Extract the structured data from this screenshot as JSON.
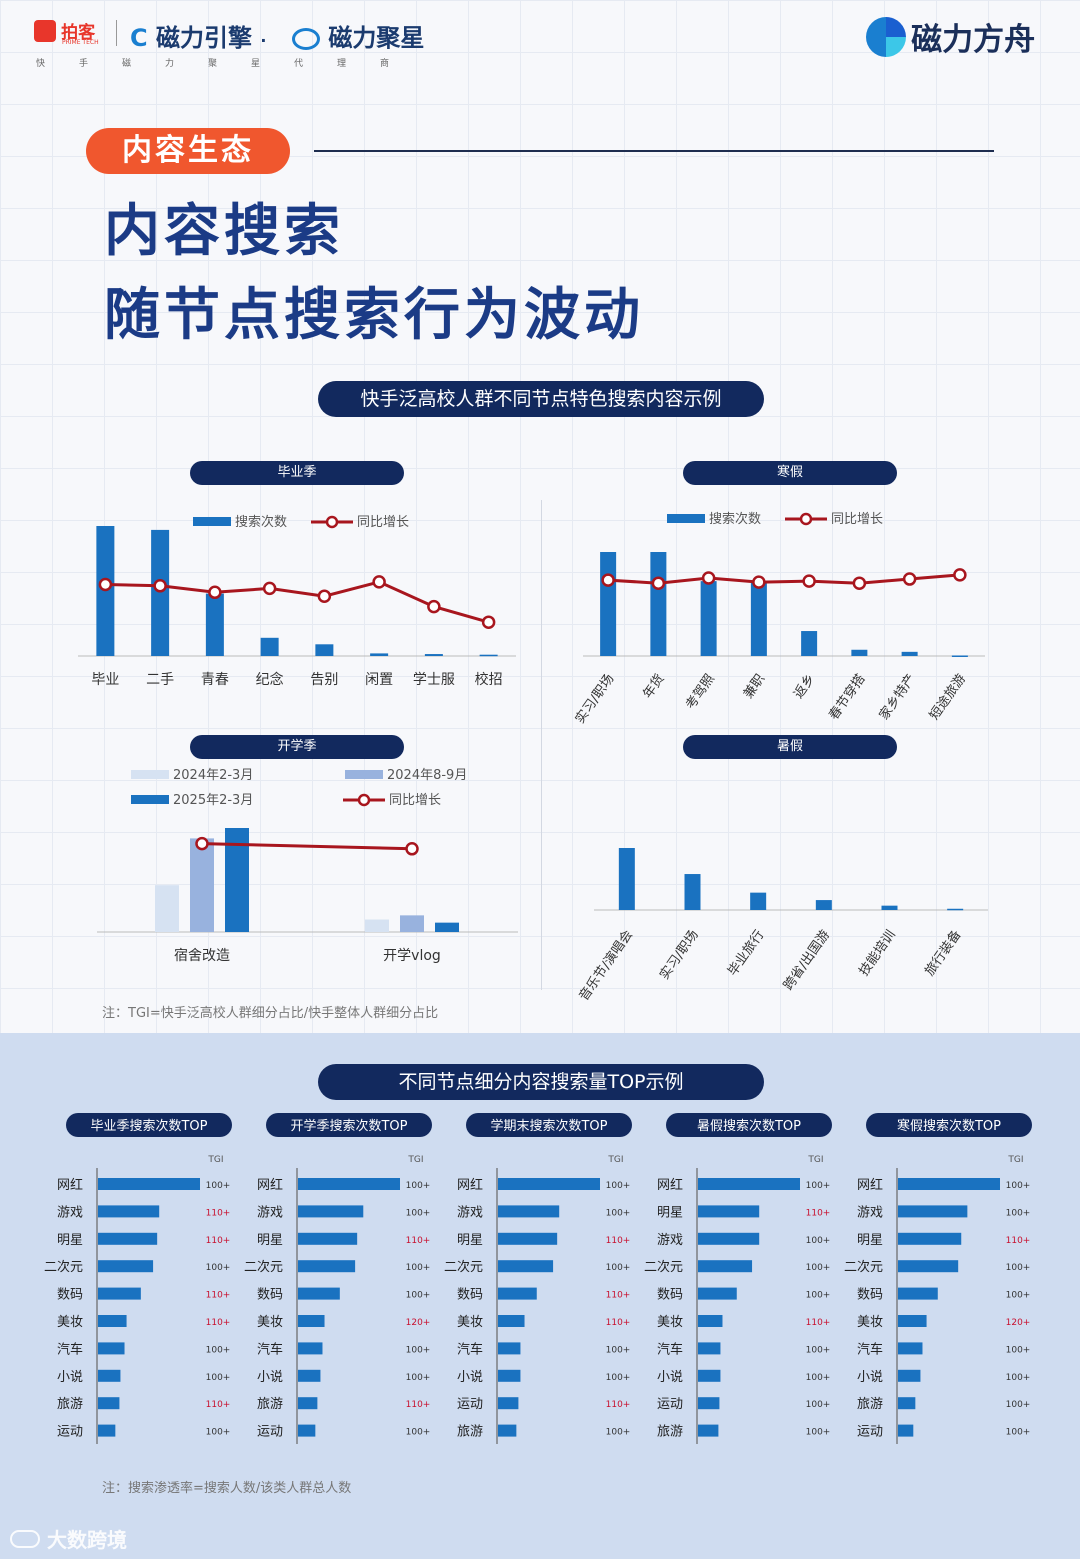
{
  "header": {
    "logo1": "拍客",
    "logo1_sub": "PRIME TECH",
    "logo2": "磁力引擎",
    "dot": "·",
    "logo3": "磁力聚星",
    "agency": "快手磁力聚星代理商",
    "brand_right": "磁力方舟"
  },
  "section_tag": "内容生态",
  "title_line1": "内容搜索",
  "title_line2": "随节点搜索行为波动",
  "panel1_title": "快手泛高校人群不同节点特色搜索内容示例",
  "note1": "注：TGI=快手泛高校人群细分占比/快手整体人群细分占比",
  "panel2_title": "不同节点细分内容搜索量TOP示例",
  "note2": "注：搜索渗透率=搜索人数/该类人群总人数",
  "watermark": "大数跨境",
  "colors": {
    "bar": "#1a72c0",
    "line": "#a8161e",
    "navy": "#12295e",
    "orange": "#f0572e",
    "light1": "#d6e2f2",
    "light2": "#98b2de"
  },
  "chart_data": [
    {
      "type": "bar+line",
      "title": "毕业季",
      "legend": [
        "搜索次数",
        "同比增长"
      ],
      "categories": [
        "毕业",
        "二手",
        "青春",
        "纪念",
        "告别",
        "闲置",
        "学士服",
        "校招"
      ],
      "series": [
        {
          "name": "搜索次数",
          "values": [
            100,
            97,
            48,
            14,
            9,
            2,
            1.5,
            1
          ]
        },
        {
          "name": "同比增长",
          "values": [
            55,
            54,
            49,
            52,
            46,
            57,
            38,
            26
          ]
        }
      ]
    },
    {
      "type": "bar+line",
      "title": "寒假",
      "legend": [
        "搜索次数",
        "同比增长"
      ],
      "categories": [
        "实习/职场",
        "年货",
        "考驾照",
        "兼职",
        "返乡",
        "春节穿搭",
        "家乡特产",
        "短途旅游"
      ],
      "series": [
        {
          "name": "搜索次数",
          "values": [
            100,
            100,
            72,
            72,
            24,
            6,
            4,
            0.5
          ]
        },
        {
          "name": "同比增长",
          "values": [
            73,
            70,
            75,
            71,
            72,
            70,
            74,
            78
          ]
        }
      ]
    },
    {
      "type": "bar+line",
      "title": "开学季",
      "legend": [
        "2024年2-3月",
        "2024年8-9月",
        "2025年2-3月",
        "同比增长"
      ],
      "categories": [
        "宿舍改造",
        "开学vlog"
      ],
      "series": [
        {
          "name": "2024年2-3月",
          "values": [
            45,
            12
          ]
        },
        {
          "name": "2024年8-9月",
          "values": [
            90,
            16
          ]
        },
        {
          "name": "2025年2-3月",
          "values": [
            100,
            9
          ]
        },
        {
          "name": "同比增长",
          "values": [
            85,
            80
          ]
        }
      ]
    },
    {
      "type": "bar",
      "title": "暑假",
      "categories": [
        "音乐节/演唱会",
        "实习/职场",
        "毕业旅行",
        "跨省/出国游",
        "技能培训",
        "旅行装备"
      ],
      "series": [
        {
          "name": "搜索次数",
          "values": [
            100,
            58,
            28,
            16,
            7,
            2
          ]
        }
      ]
    },
    {
      "type": "bar",
      "title": "毕业季搜索次数TOP",
      "tgi_label": "TGI",
      "categories": [
        "网红",
        "游戏",
        "明星",
        "二次元",
        "数码",
        "美妆",
        "汽车",
        "小说",
        "旅游",
        "运动"
      ],
      "values": [
        100,
        60,
        58,
        54,
        42,
        28,
        26,
        22,
        21,
        17
      ],
      "tgi": [
        "100+",
        "110+",
        "110+",
        "100+",
        "110+",
        "110+",
        "100+",
        "100+",
        "110+",
        "100+"
      ]
    },
    {
      "type": "bar",
      "title": "开学季搜索次数TOP",
      "tgi_label": "TGI",
      "categories": [
        "网红",
        "游戏",
        "明星",
        "二次元",
        "数码",
        "美妆",
        "汽车",
        "小说",
        "旅游",
        "运动"
      ],
      "values": [
        100,
        64,
        58,
        56,
        41,
        26,
        24,
        22,
        19,
        17
      ],
      "tgi": [
        "100+",
        "100+",
        "110+",
        "100+",
        "100+",
        "120+",
        "100+",
        "100+",
        "110+",
        "100+"
      ]
    },
    {
      "type": "bar",
      "title": "学期末搜索次数TOP",
      "tgi_label": "TGI",
      "categories": [
        "网红",
        "游戏",
        "明星",
        "二次元",
        "数码",
        "美妆",
        "汽车",
        "小说",
        "运动",
        "旅游"
      ],
      "values": [
        100,
        60,
        58,
        54,
        38,
        26,
        22,
        22,
        20,
        18
      ],
      "tgi": [
        "100+",
        "100+",
        "110+",
        "100+",
        "110+",
        "110+",
        "100+",
        "100+",
        "110+",
        "100+"
      ]
    },
    {
      "type": "bar",
      "title": "暑假搜索次数TOP",
      "tgi_label": "TGI",
      "categories": [
        "网红",
        "明星",
        "游戏",
        "二次元",
        "数码",
        "美妆",
        "汽车",
        "小说",
        "运动",
        "旅游"
      ],
      "values": [
        100,
        60,
        60,
        53,
        38,
        24,
        22,
        22,
        21,
        20
      ],
      "tgi": [
        "100+",
        "110+",
        "100+",
        "100+",
        "100+",
        "110+",
        "100+",
        "100+",
        "100+",
        "100+"
      ]
    },
    {
      "type": "bar",
      "title": "寒假搜索次数TOP",
      "tgi_label": "TGI",
      "categories": [
        "网红",
        "游戏",
        "明星",
        "二次元",
        "数码",
        "美妆",
        "汽车",
        "小说",
        "旅游",
        "运动"
      ],
      "values": [
        100,
        68,
        62,
        59,
        39,
        28,
        24,
        22,
        17,
        15
      ],
      "tgi": [
        "100+",
        "100+",
        "110+",
        "100+",
        "100+",
        "120+",
        "100+",
        "100+",
        "100+",
        "100+"
      ]
    }
  ]
}
